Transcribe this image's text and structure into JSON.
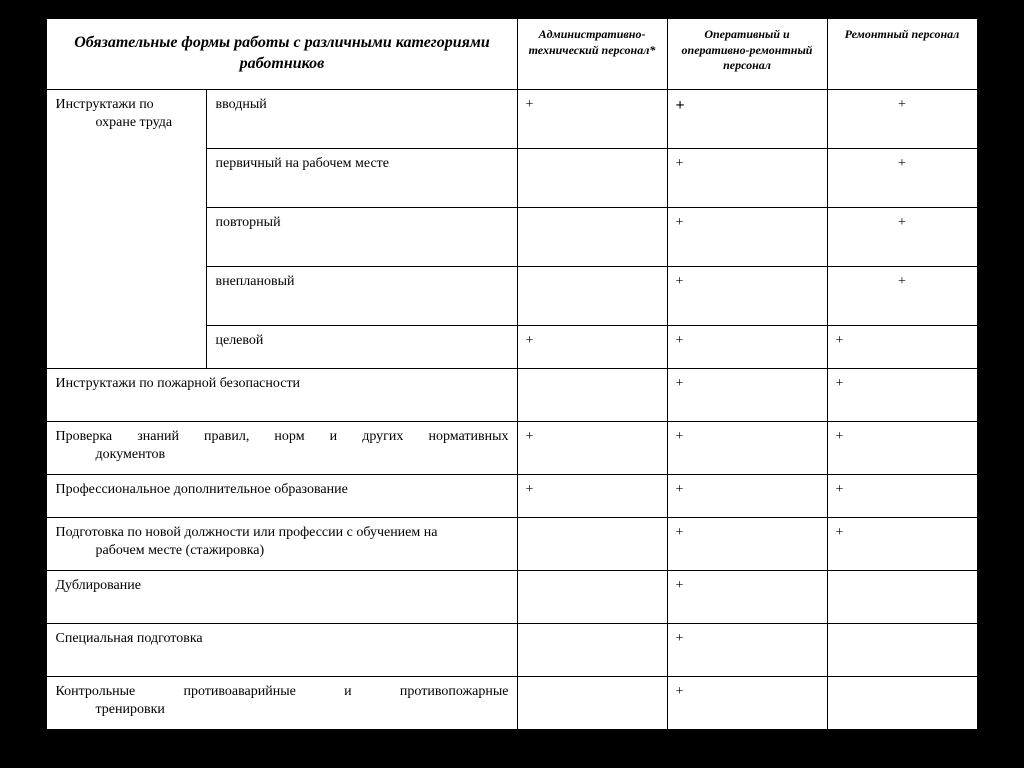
{
  "header": {
    "main": "Обязательные формы работы с различными категориями работников",
    "col3": "Административно-технический персонал*",
    "col4": "Оперативный и оперативно-ремонтный персонал",
    "col5": "Ремонтный персонал"
  },
  "groupLabelLine1": "Инструктажи по",
  "groupLabelLine2": "охране труда",
  "rows": {
    "r1": {
      "c2": "вводный",
      "c3": "+",
      "c4": "+",
      "c5": "+"
    },
    "r2": {
      "c2": "первичный на рабочем месте",
      "c3": "",
      "c4": "+",
      "c5": "+"
    },
    "r3": {
      "c2": "повторный",
      "c3": "",
      "c4": "+",
      "c5": "+"
    },
    "r4": {
      "c2": "внеплановый",
      "c3": "",
      "c4": "+",
      "c5": "+"
    },
    "r5": {
      "c2": "целевой",
      "c3": "+",
      "c4": "+",
      "c5": "+"
    },
    "r6": {
      "c1": "Инструктажи по пожарной безопасности",
      "c3": "",
      "c4": "+",
      "c5": "+"
    },
    "r7": {
      "c1": "Проверка знаний правил, норм и других нормативных",
      "c1b": "документов",
      "c3": "+",
      "c4": "+",
      "c5": "+"
    },
    "r8": {
      "c1": "Профессиональное дополнительное образование",
      "c3": "+",
      "c4": "+",
      "c5": "+"
    },
    "r9": {
      "c1": "Подготовка по новой должности или профессии с обучением на",
      "c1b": "рабочем месте (стажировка)",
      "c3": "",
      "c4": "+",
      "c5": "+"
    },
    "r10": {
      "c1": "Дублирование",
      "c3": "",
      "c4": "+",
      "c5": ""
    },
    "r11": {
      "c1": "Специальная подготовка",
      "c3": "",
      "c4": "+",
      "c5": ""
    },
    "r12": {
      "c1": "Контрольные противоаварийные и противопожарные",
      "c1b": "тренировки",
      "c3": "",
      "c4": "+",
      "c5": ""
    }
  }
}
